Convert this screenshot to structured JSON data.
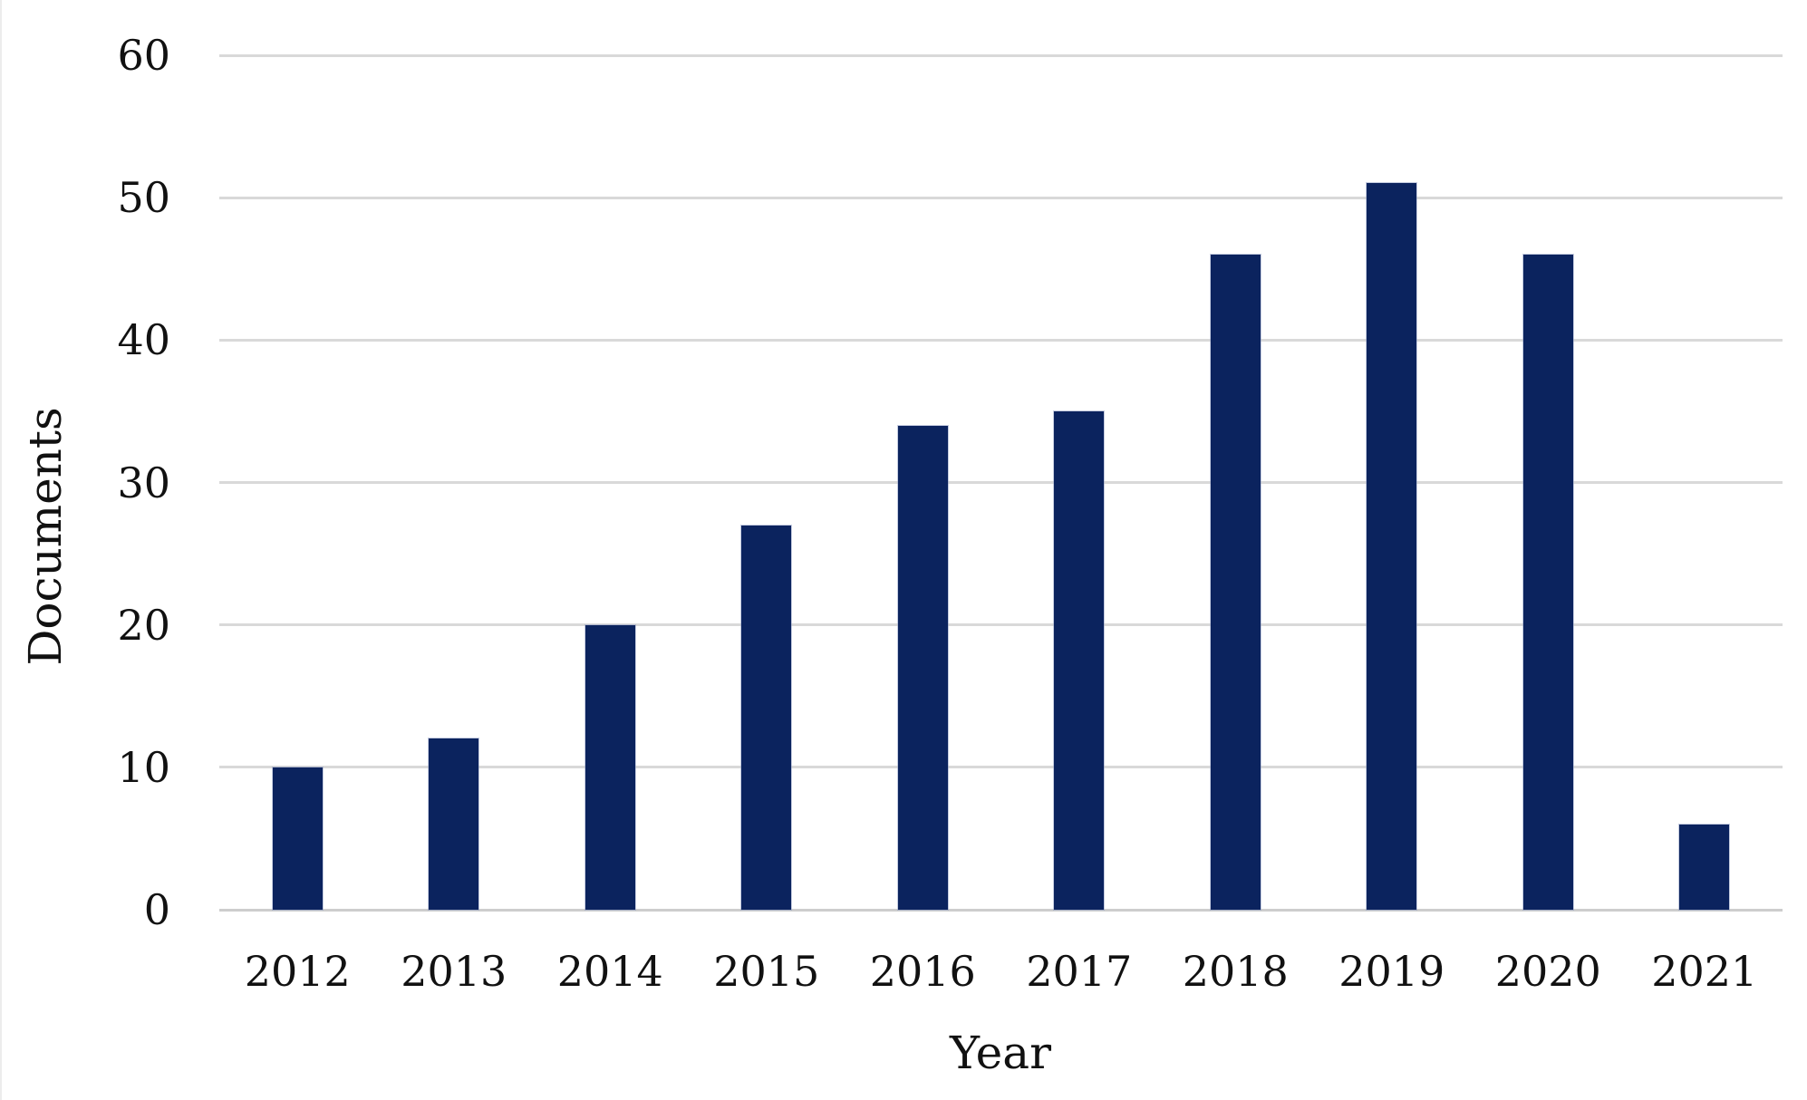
{
  "chart_data": {
    "type": "bar",
    "categories": [
      "2012",
      "2013",
      "2014",
      "2015",
      "2016",
      "2017",
      "2018",
      "2019",
      "2020",
      "2021"
    ],
    "values": [
      10,
      12,
      20,
      27,
      34,
      35,
      46,
      51,
      46,
      6
    ],
    "title": "",
    "xlabel": "Year",
    "ylabel": "Documents",
    "ylim": [
      0,
      60
    ],
    "yticks": [
      0,
      10,
      20,
      30,
      40,
      50,
      60
    ],
    "grid": true,
    "legend_position": "none",
    "bar_color": "#0b235e",
    "gridline_color": "#d9d9d9",
    "axis_line_color": "#cdcdcd",
    "text_color": "#111111"
  }
}
